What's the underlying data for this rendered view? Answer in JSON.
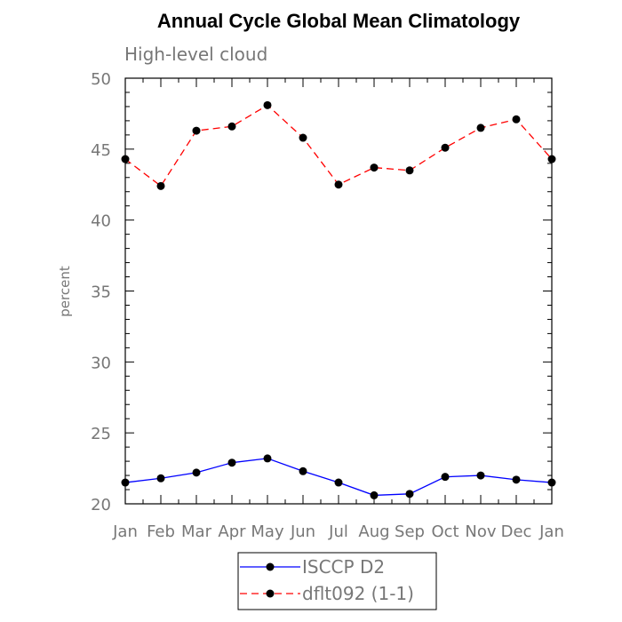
{
  "chart_data": {
    "type": "line",
    "title": "Annual Cycle Global Mean Climatology",
    "subtitle": "High-level cloud",
    "ylabel": "percent",
    "xlabel": "",
    "categories": [
      "Jan",
      "Feb",
      "Mar",
      "Apr",
      "May",
      "Jun",
      "Jul",
      "Aug",
      "Sep",
      "Oct",
      "Nov",
      "Dec",
      "Jan"
    ],
    "ylim": [
      20,
      50
    ],
    "yticks": [
      20,
      25,
      30,
      35,
      40,
      45,
      50
    ],
    "grid": false,
    "legend_position": "bottom",
    "series": [
      {
        "name": "ISCCP D2",
        "color": "#0000ff",
        "dash": "solid",
        "marker": "circle",
        "values": [
          21.5,
          21.8,
          22.2,
          22.9,
          23.2,
          22.3,
          21.5,
          20.6,
          20.7,
          21.9,
          22.0,
          21.7,
          21.5
        ]
      },
      {
        "name": "dflt092 (1-1)",
        "color": "#ff0000",
        "dash": "dashed",
        "marker": "circle",
        "values": [
          44.3,
          42.4,
          46.3,
          46.6,
          48.1,
          45.8,
          42.5,
          43.7,
          43.5,
          45.1,
          46.5,
          47.1,
          44.3
        ]
      }
    ]
  }
}
